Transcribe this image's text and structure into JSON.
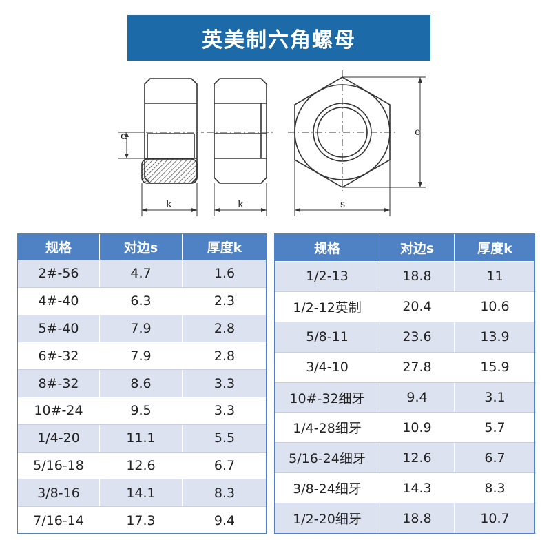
{
  "title": "英美制六角螺母",
  "drawing": {
    "labels": {
      "d": "d",
      "k1": "k",
      "k2": "k",
      "s": "s",
      "e": "e"
    }
  },
  "colors": {
    "banner": "#1d6aa8",
    "header": "#4f82c4",
    "row_alt": "#dde2f0"
  },
  "tables": [
    {
      "headers": [
        "规格",
        "对边s",
        "厚度k"
      ],
      "rows": [
        [
          "2#-56",
          "4.7",
          "1.6"
        ],
        [
          "4#-40",
          "6.3",
          "2.3"
        ],
        [
          "5#-40",
          "7.9",
          "2.8"
        ],
        [
          "6#-32",
          "7.9",
          "2.8"
        ],
        [
          "8#-32",
          "8.6",
          "3.3"
        ],
        [
          "10#-24",
          "9.5",
          "3.3"
        ],
        [
          "1/4-20",
          "11.1",
          "5.5"
        ],
        [
          "5/16-18",
          "12.6",
          "6.7"
        ],
        [
          "3/8-16",
          "14.1",
          "8.3"
        ],
        [
          "7/16-14",
          "17.3",
          "9.4"
        ]
      ]
    },
    {
      "headers": [
        "规格",
        "对边s",
        "厚度k"
      ],
      "rows": [
        [
          "1/2-13",
          "18.8",
          "11"
        ],
        [
          "1/2-12英制",
          "20.4",
          "10.6"
        ],
        [
          "5/8-11",
          "23.6",
          "13.9"
        ],
        [
          "3/4-10",
          "27.8",
          "15.9"
        ],
        [
          "10#-32细牙",
          "9.4",
          "3.1"
        ],
        [
          "1/4-28细牙",
          "10.9",
          "5.7"
        ],
        [
          "5/16-24细牙",
          "12.6",
          "6.7"
        ],
        [
          "3/8-24细牙",
          "14.3",
          "8.3"
        ],
        [
          "1/2-20细牙",
          "18.8",
          "10.7"
        ]
      ]
    }
  ]
}
